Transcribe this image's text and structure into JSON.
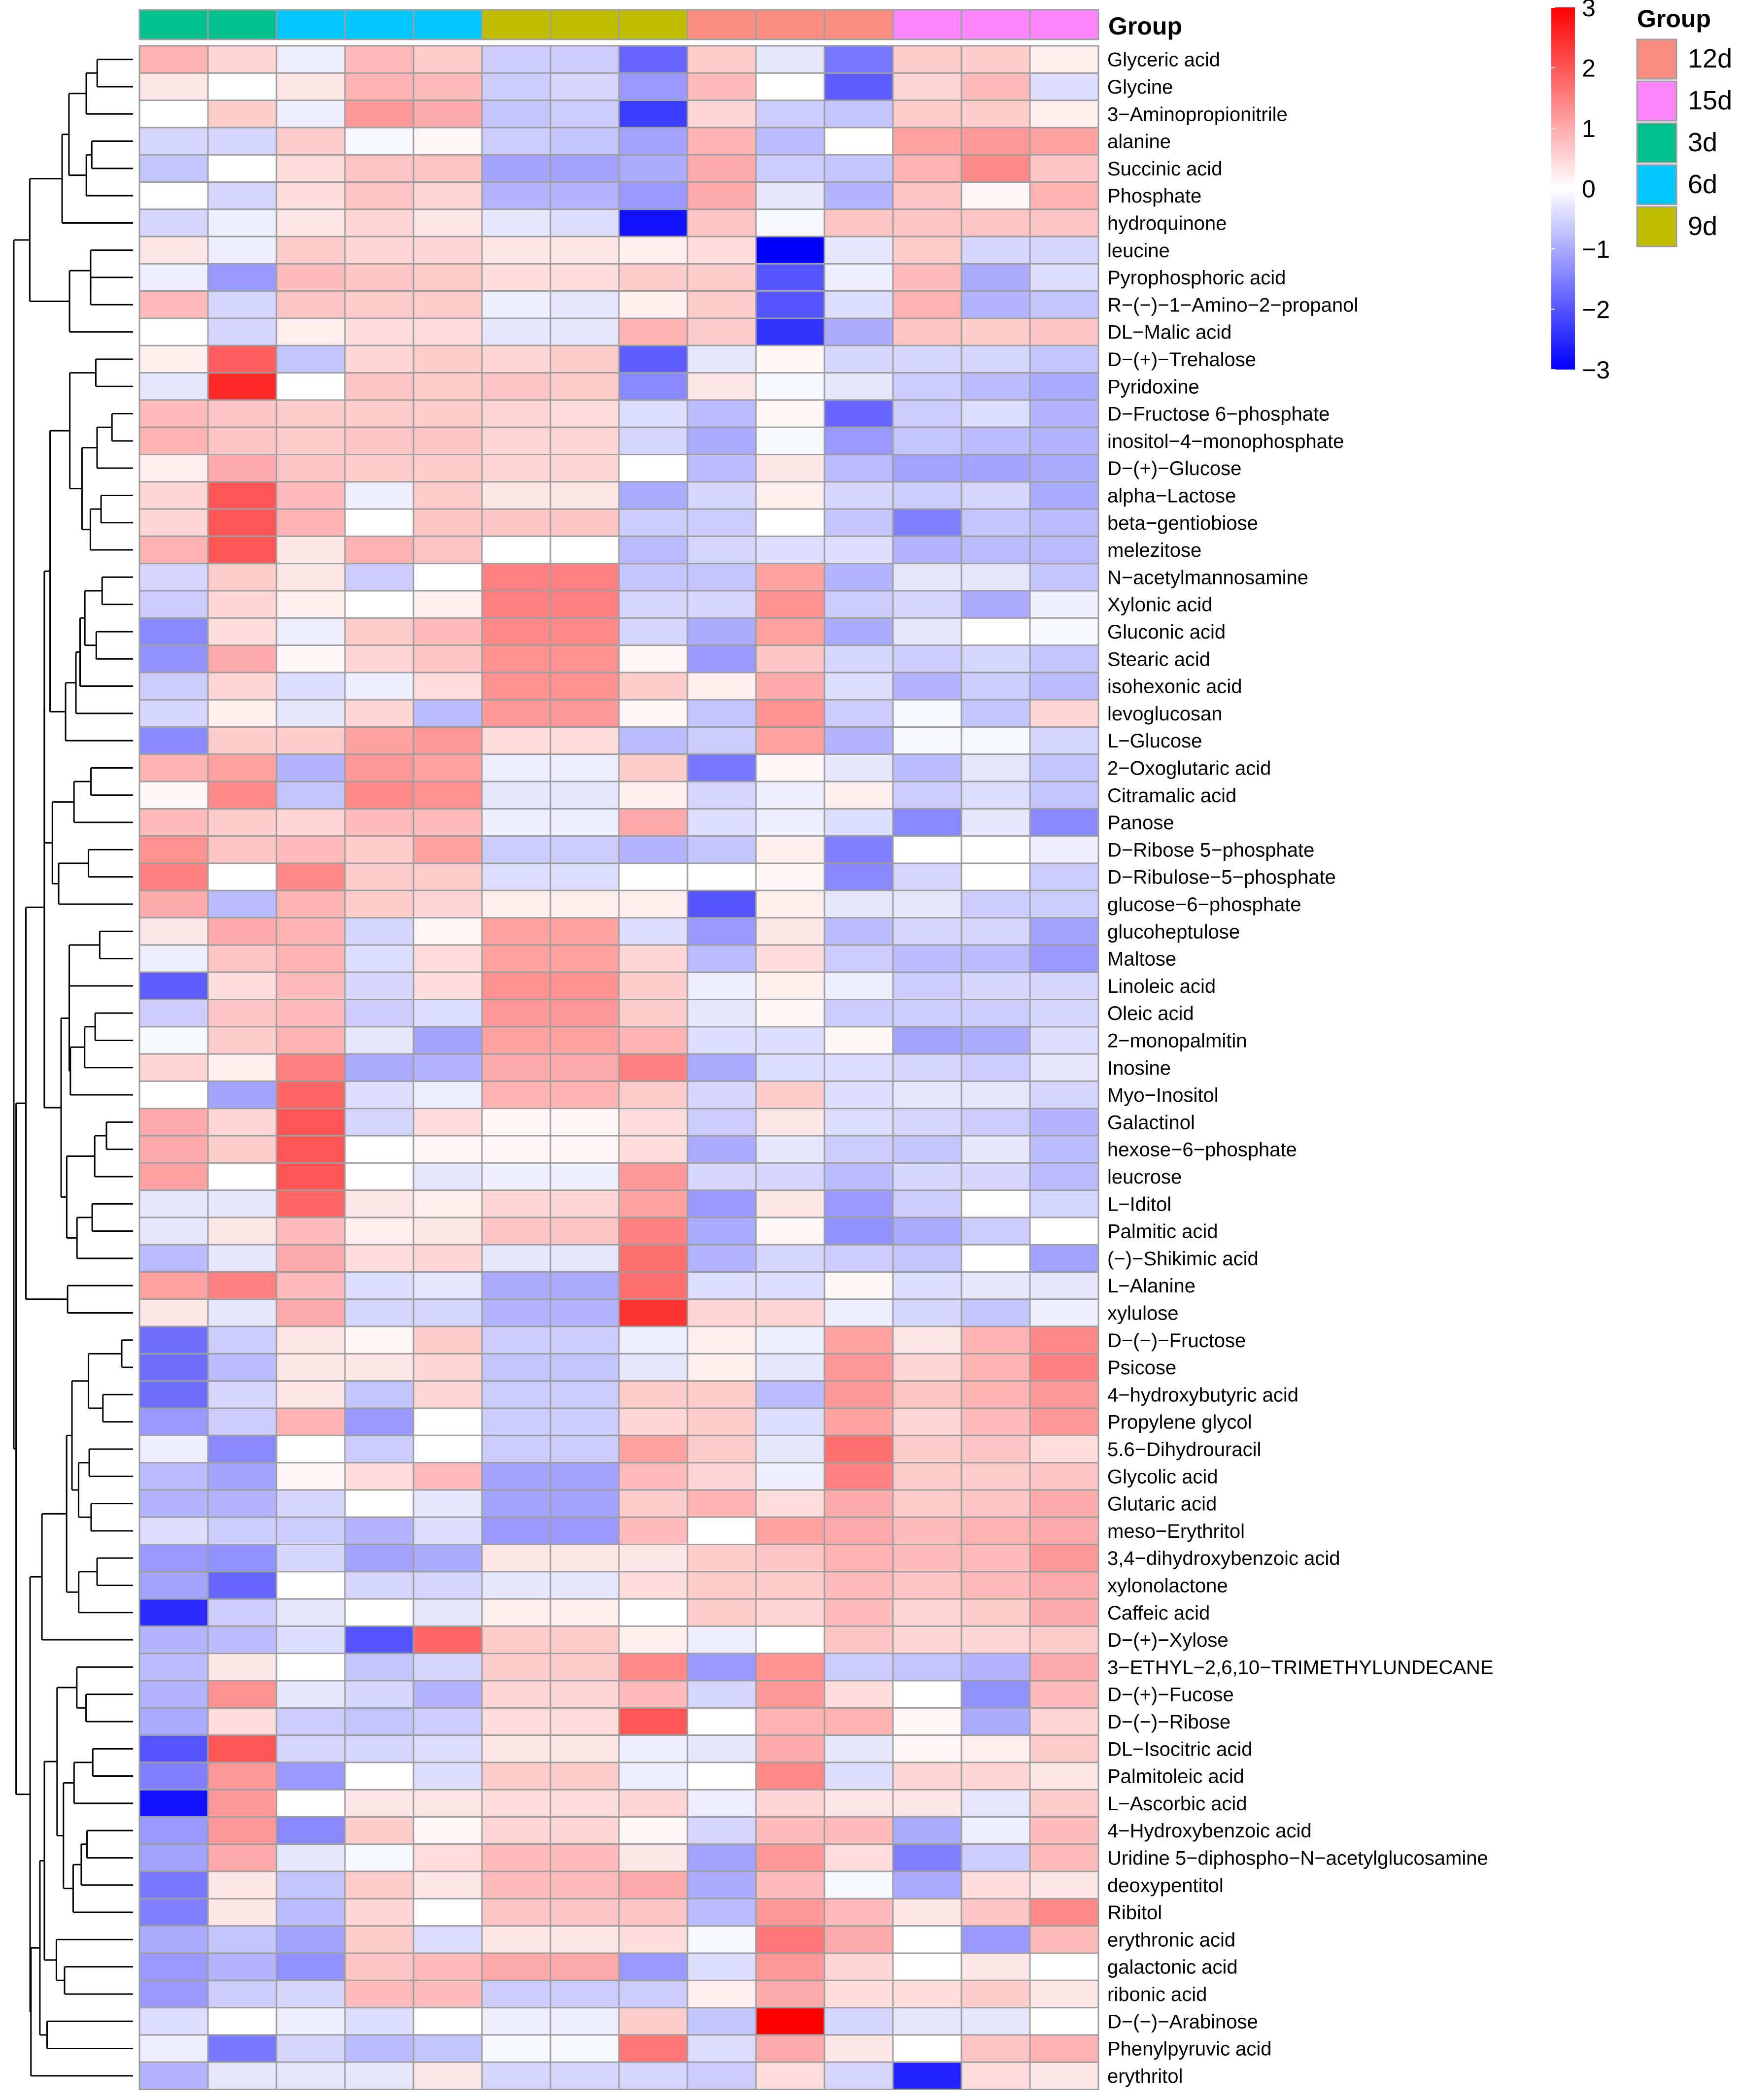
{
  "chart_data": {
    "type": "heatmap",
    "annotation_title": "Group",
    "column_groups": [
      "3d",
      "3d",
      "6d",
      "6d",
      "6d",
      "9d",
      "9d",
      "9d",
      "12d",
      "12d",
      "12d",
      "15d",
      "15d",
      "15d"
    ],
    "group_colors": {
      "3d": "#00C08D",
      "6d": "#00C8FF",
      "9d": "#BFBF00",
      "12d": "#FA8D80",
      "15d": "#FF85FF"
    },
    "legend": {
      "title": "Group",
      "items": [
        "12d",
        "15d",
        "3d",
        "6d",
        "9d"
      ]
    },
    "colorbar": {
      "min": -3,
      "max": 3,
      "ticks": [
        3,
        2,
        1,
        0,
        -1,
        -2,
        -3
      ],
      "tick_labels": [
        "3",
        "2",
        "1",
        "0",
        "−1",
        "−2",
        "−3"
      ],
      "colors": {
        "low": "#0000FF",
        "mid": "#FFFFFF",
        "high": "#FF0000"
      }
    },
    "rows": [
      "Glyceric acid",
      "Glycine",
      "3−Aminopropionitrile",
      "alanine",
      "Succinic acid",
      "Phosphate",
      "hydroquinone",
      "leucine",
      "Pyrophosphoric acid",
      "R−(−)−1−Amino−2−propanol",
      "DL−Malic acid",
      "D−(+)−Trehalose",
      "Pyridoxine",
      "D−Fructose 6−phosphate",
      "inositol−4−monophosphate",
      "D−(+)−Glucose",
      "alpha−Lactose",
      "beta−gentiobiose",
      "melezitose",
      "N−acetylmannosamine",
      "Xylonic acid",
      "Gluconic acid",
      "Stearic acid",
      "isohexonic acid",
      "levoglucosan",
      "L−Glucose",
      "2−Oxoglutaric acid",
      "Citramalic acid",
      "Panose",
      "D−Ribose 5−phosphate",
      "D−Ribulose−5−phosphate",
      "glucose−6−phosphate",
      "glucoheptulose",
      "Maltose",
      "Linoleic acid",
      "Oleic acid",
      "2−monopalmitin",
      "Inosine",
      "Myo−Inositol",
      "Galactinol",
      "hexose−6−phosphate",
      "leucrose",
      "L−Iditol",
      "Palmitic acid",
      "(−)−Shikimic acid",
      "L−Alanine",
      "xylulose",
      "D−(−)−Fructose",
      "Psicose",
      "4−hydroxybutyric acid",
      "Propylene glycol",
      "5.6−Dihydrouracil",
      "Glycolic acid",
      "Glutaric acid",
      "meso−Erythritol",
      "3,4−dihydroxybenzoic acid",
      "xylonolactone",
      "Caffeic acid",
      "D−(+)−Xylose",
      "3−ETHYL−2,6,10−TRIMETHYLUNDECANE",
      "D−(+)−Fucose",
      "D−(−)−Ribose",
      "DL−Isocitric acid",
      "Palmitoleic acid",
      "L−Ascorbic acid",
      "4−Hydroxybenzoic acid",
      "Uridine 5−diphospho−N−acetylglucosamine",
      "deoxypentitol",
      "Ribitol",
      "erythronic acid",
      "galactonic acid",
      "ribonic acid",
      "D−(−)−Arabinose",
      "Phenylpyruvic acid",
      "erythritol"
    ],
    "values": [
      [
        0.9,
        0.5,
        -0.2,
        0.8,
        0.6,
        -0.6,
        -0.6,
        -1.8,
        0.6,
        -0.3,
        -1.6,
        0.6,
        0.6,
        0.2
      ],
      [
        0.3,
        0.0,
        0.3,
        0.9,
        0.8,
        -0.6,
        -0.5,
        -1.2,
        0.8,
        0.0,
        -1.9,
        0.5,
        0.8,
        -0.4
      ],
      [
        0.0,
        0.6,
        -0.2,
        1.2,
        1.0,
        -0.7,
        -0.6,
        -2.3,
        0.5,
        -0.6,
        -0.7,
        0.6,
        0.6,
        0.2
      ],
      [
        -0.5,
        -0.5,
        0.6,
        -0.1,
        0.1,
        -0.6,
        -0.7,
        -1.1,
        0.9,
        -0.8,
        0.0,
        1.1,
        1.2,
        1.1
      ],
      [
        -0.7,
        0.0,
        0.4,
        0.7,
        0.7,
        -1.1,
        -1.1,
        -1.0,
        1.0,
        -0.6,
        -0.7,
        0.9,
        1.4,
        0.7
      ],
      [
        0.0,
        -0.5,
        0.4,
        0.7,
        0.5,
        -0.9,
        -0.9,
        -1.2,
        1.0,
        -0.3,
        -0.9,
        0.7,
        0.1,
        0.9
      ],
      [
        -0.5,
        -0.2,
        0.3,
        0.5,
        0.3,
        -0.3,
        -0.4,
        -2.8,
        0.7,
        -0.1,
        0.7,
        0.7,
        0.7,
        0.7
      ],
      [
        0.3,
        -0.2,
        0.6,
        0.5,
        0.5,
        0.3,
        0.3,
        0.2,
        0.4,
        -3.0,
        -0.3,
        0.6,
        -0.5,
        -0.5
      ],
      [
        -0.2,
        -1.2,
        0.8,
        0.7,
        0.6,
        0.4,
        0.4,
        0.6,
        0.6,
        -2.0,
        -0.2,
        0.8,
        -1.0,
        -0.4
      ],
      [
        0.8,
        -0.5,
        0.7,
        0.6,
        0.6,
        -0.2,
        -0.3,
        0.2,
        0.6,
        -2.0,
        -0.4,
        0.9,
        -0.9,
        -0.7
      ],
      [
        0.0,
        -0.5,
        0.2,
        0.4,
        0.4,
        -0.3,
        -0.3,
        0.9,
        0.6,
        -2.4,
        -1.0,
        0.7,
        0.6,
        0.7
      ],
      [
        0.2,
        1.9,
        -0.7,
        0.5,
        0.6,
        0.5,
        0.6,
        -1.9,
        -0.3,
        0.1,
        -0.5,
        -0.5,
        -0.5,
        -0.7
      ],
      [
        -0.3,
        2.5,
        0.0,
        0.7,
        0.6,
        0.7,
        0.6,
        -1.4,
        0.3,
        -0.1,
        -0.3,
        -0.6,
        -0.8,
        -1.0
      ],
      [
        0.8,
        0.7,
        0.6,
        0.6,
        0.6,
        0.5,
        0.4,
        -0.4,
        -0.8,
        0.1,
        -1.8,
        -0.6,
        -0.4,
        -0.9
      ],
      [
        0.9,
        0.7,
        0.6,
        0.7,
        0.7,
        0.5,
        0.5,
        -0.5,
        -1.0,
        -0.1,
        -1.2,
        -0.7,
        -0.8,
        -0.9
      ],
      [
        0.2,
        1.0,
        0.7,
        0.6,
        0.6,
        0.5,
        0.5,
        0.0,
        -0.8,
        0.3,
        -0.8,
        -1.1,
        -1.1,
        -1.0
      ],
      [
        0.5,
        2.0,
        0.8,
        -0.2,
        0.6,
        0.3,
        0.3,
        -1.0,
        -0.5,
        0.2,
        -0.5,
        -0.6,
        -0.5,
        -1.0
      ],
      [
        0.5,
        2.0,
        0.9,
        0.0,
        0.7,
        0.7,
        0.7,
        -0.6,
        -0.6,
        0.0,
        -0.7,
        -1.5,
        -0.7,
        -0.8
      ],
      [
        0.9,
        2.0,
        0.3,
        0.9,
        0.7,
        0.0,
        0.0,
        -0.8,
        -0.5,
        -0.4,
        -0.4,
        -0.9,
        -0.8,
        -0.8
      ],
      [
        -0.5,
        0.6,
        0.3,
        -0.6,
        0.0,
        1.5,
        1.5,
        -0.7,
        -0.7,
        1.1,
        -0.9,
        -0.3,
        -0.3,
        -0.7
      ],
      [
        -0.6,
        0.5,
        0.2,
        0.0,
        0.2,
        1.5,
        1.5,
        -0.5,
        -0.5,
        1.3,
        -0.6,
        -0.5,
        -1.0,
        -0.2
      ],
      [
        -1.4,
        0.4,
        -0.2,
        0.6,
        0.8,
        1.4,
        1.4,
        -0.5,
        -1.0,
        1.1,
        -1.0,
        -0.3,
        0.0,
        -0.1
      ],
      [
        -1.3,
        1.0,
        0.1,
        0.5,
        0.7,
        1.3,
        1.3,
        0.1,
        -1.2,
        0.7,
        -0.5,
        -0.6,
        -0.5,
        -0.7
      ],
      [
        -0.6,
        0.5,
        -0.4,
        -0.2,
        0.4,
        1.3,
        1.3,
        0.6,
        0.2,
        1.0,
        -0.4,
        -0.9,
        -0.6,
        -0.8
      ],
      [
        -0.5,
        0.2,
        -0.3,
        0.5,
        -0.8,
        1.2,
        1.2,
        0.1,
        -0.7,
        1.3,
        -0.6,
        -0.1,
        -0.7,
        0.5
      ],
      [
        -1.4,
        0.6,
        0.6,
        1.1,
        1.2,
        0.4,
        0.4,
        -0.8,
        -0.6,
        1.1,
        -0.9,
        -0.1,
        -0.1,
        -0.5
      ],
      [
        0.9,
        1.1,
        -0.9,
        1.2,
        1.1,
        -0.2,
        -0.2,
        0.6,
        -1.6,
        0.1,
        -0.3,
        -0.8,
        -0.3,
        -0.7
      ],
      [
        0.1,
        1.4,
        -0.7,
        1.4,
        1.3,
        -0.3,
        -0.3,
        0.2,
        -0.5,
        -0.2,
        0.2,
        -0.6,
        -0.4,
        -0.7
      ],
      [
        0.8,
        0.6,
        0.5,
        0.8,
        0.8,
        -0.2,
        -0.2,
        1.0,
        -0.4,
        -0.2,
        -0.4,
        -1.4,
        -0.3,
        -1.4
      ],
      [
        1.3,
        0.7,
        0.8,
        0.6,
        1.1,
        -0.6,
        -0.6,
        -0.9,
        -0.7,
        0.2,
        -1.5,
        0.0,
        0.0,
        -0.2
      ],
      [
        1.5,
        0.0,
        1.4,
        0.6,
        0.6,
        -0.4,
        -0.4,
        0.0,
        0.0,
        0.1,
        -1.4,
        -0.5,
        0.0,
        -0.6
      ],
      [
        1.0,
        -0.8,
        0.9,
        0.6,
        0.5,
        0.2,
        0.2,
        0.2,
        -2.0,
        0.2,
        -0.3,
        -0.3,
        -0.6,
        -0.6
      ],
      [
        0.3,
        1.0,
        0.9,
        -0.5,
        0.1,
        1.1,
        1.1,
        -0.4,
        -1.2,
        0.3,
        -0.8,
        -0.5,
        -0.5,
        -1.1
      ],
      [
        -0.2,
        0.7,
        0.9,
        -0.4,
        0.4,
        1.1,
        1.1,
        0.5,
        -0.8,
        0.4,
        -0.6,
        -0.8,
        -0.8,
        -1.2
      ],
      [
        -1.9,
        0.4,
        0.8,
        -0.5,
        0.4,
        1.3,
        1.3,
        0.6,
        -0.2,
        0.2,
        -0.2,
        -0.6,
        -0.5,
        -0.5
      ],
      [
        -0.6,
        0.7,
        0.8,
        -0.6,
        -0.4,
        1.2,
        1.2,
        0.6,
        -0.3,
        0.1,
        -0.6,
        -0.6,
        -0.6,
        -0.5
      ],
      [
        -0.1,
        0.6,
        0.9,
        -0.3,
        -1.1,
        1.1,
        1.1,
        0.9,
        -0.4,
        -0.4,
        0.1,
        -1.1,
        -1.0,
        -0.4
      ],
      [
        0.5,
        0.2,
        1.5,
        -1.0,
        -0.9,
        1.0,
        1.0,
        1.5,
        -1.0,
        -0.4,
        -0.4,
        -0.5,
        -0.6,
        -0.3
      ],
      [
        0.0,
        -1.1,
        1.8,
        -0.4,
        -0.2,
        0.9,
        0.9,
        0.6,
        -0.5,
        0.6,
        -0.4,
        -0.3,
        -0.3,
        -0.5
      ],
      [
        1.0,
        0.5,
        2.0,
        -0.5,
        0.4,
        0.1,
        0.1,
        0.4,
        -0.6,
        0.3,
        -0.4,
        -0.5,
        -0.6,
        -0.9
      ],
      [
        1.0,
        0.6,
        2.0,
        0.0,
        0.1,
        0.1,
        0.1,
        0.4,
        -1.0,
        -0.3,
        -0.6,
        -0.7,
        -0.3,
        -0.8
      ],
      [
        1.1,
        0.0,
        2.0,
        0.0,
        -0.3,
        -0.2,
        -0.2,
        1.2,
        -0.5,
        -0.5,
        -0.8,
        -0.5,
        -0.5,
        -0.8
      ],
      [
        -0.3,
        -0.3,
        1.8,
        0.3,
        0.2,
        0.5,
        0.5,
        1.1,
        -1.2,
        0.3,
        -1.2,
        -0.6,
        0.0,
        -0.5
      ],
      [
        -0.3,
        0.3,
        0.8,
        0.2,
        0.3,
        0.7,
        0.7,
        1.5,
        -1.0,
        0.1,
        -1.3,
        -1.0,
        -0.6,
        0.0
      ],
      [
        -0.8,
        -0.3,
        1.0,
        0.4,
        0.5,
        -0.3,
        -0.3,
        1.7,
        -0.9,
        -0.5,
        -0.6,
        -0.7,
        0.0,
        -1.1
      ],
      [
        1.1,
        1.5,
        0.8,
        -0.4,
        -0.3,
        -1.0,
        -1.0,
        1.7,
        -0.4,
        -0.4,
        0.1,
        -0.4,
        -0.3,
        -0.3
      ],
      [
        0.3,
        -0.3,
        1.0,
        -0.5,
        -0.5,
        -0.9,
        -0.9,
        2.4,
        0.5,
        0.5,
        -0.2,
        -0.5,
        -0.7,
        -0.2
      ],
      [
        -1.7,
        -0.6,
        0.3,
        0.1,
        0.6,
        -0.6,
        -0.6,
        -0.2,
        0.2,
        -0.2,
        1.1,
        0.3,
        0.9,
        1.4
      ],
      [
        -1.7,
        -0.8,
        0.3,
        0.3,
        0.5,
        -0.7,
        -0.7,
        -0.3,
        0.2,
        -0.3,
        1.2,
        0.5,
        0.9,
        1.5
      ],
      [
        -1.7,
        -0.5,
        0.3,
        -0.7,
        0.5,
        -0.6,
        -0.6,
        0.6,
        0.6,
        -0.8,
        1.2,
        0.7,
        0.9,
        1.2
      ],
      [
        -1.2,
        -0.6,
        0.9,
        -1.2,
        0.0,
        -0.6,
        -0.6,
        0.5,
        0.6,
        -0.4,
        1.1,
        0.5,
        0.8,
        1.2
      ],
      [
        -0.2,
        -1.4,
        0.0,
        -0.6,
        0.0,
        -0.6,
        -0.6,
        1.1,
        0.6,
        -0.3,
        1.7,
        0.6,
        0.7,
        0.4
      ],
      [
        -0.8,
        -1.1,
        0.1,
        0.4,
        0.8,
        -1.1,
        -1.1,
        0.8,
        0.5,
        -0.2,
        1.5,
        0.6,
        0.6,
        0.7
      ],
      [
        -0.9,
        -0.9,
        -0.5,
        0.0,
        -0.3,
        -1.1,
        -1.1,
        0.6,
        0.9,
        0.4,
        1.0,
        0.6,
        0.7,
        1.0
      ],
      [
        -0.4,
        -0.6,
        -0.6,
        -0.9,
        -0.4,
        -1.2,
        -1.2,
        0.8,
        0.0,
        1.1,
        1.0,
        0.8,
        0.9,
        1.0
      ],
      [
        -1.2,
        -1.3,
        -0.5,
        -1.1,
        -1.0,
        0.3,
        0.3,
        0.3,
        0.6,
        0.7,
        0.9,
        0.8,
        0.8,
        1.2
      ],
      [
        -1.1,
        -1.8,
        0.0,
        -0.5,
        -0.5,
        -0.3,
        -0.3,
        0.4,
        0.6,
        0.6,
        0.8,
        0.7,
        0.8,
        1.0
      ],
      [
        -2.5,
        -0.6,
        -0.3,
        0.0,
        -0.3,
        0.2,
        0.2,
        0.0,
        0.6,
        0.5,
        0.8,
        0.5,
        0.6,
        1.0
      ],
      [
        -0.9,
        -0.8,
        -0.4,
        -2.0,
        1.8,
        0.6,
        0.6,
        0.2,
        -0.2,
        0.0,
        0.7,
        0.5,
        0.5,
        0.6
      ],
      [
        -0.8,
        0.3,
        0.0,
        -0.7,
        -0.5,
        0.6,
        0.6,
        1.4,
        -1.2,
        1.3,
        -0.6,
        -0.7,
        -0.9,
        1.0
      ],
      [
        -0.9,
        1.3,
        -0.3,
        -0.5,
        -0.9,
        0.5,
        0.5,
        0.8,
        -0.5,
        1.2,
        0.4,
        0.0,
        -1.3,
        0.8
      ],
      [
        -1.0,
        0.4,
        -0.6,
        -0.7,
        -0.6,
        0.4,
        0.4,
        2.0,
        0.0,
        0.9,
        0.9,
        0.1,
        -1.0,
        0.5
      ],
      [
        -2.0,
        2.0,
        -0.5,
        -0.5,
        -0.4,
        0.3,
        0.3,
        -0.2,
        -0.3,
        1.0,
        -0.3,
        0.1,
        0.2,
        0.6
      ],
      [
        -1.5,
        1.2,
        -1.2,
        0.0,
        -0.4,
        0.6,
        0.6,
        -0.2,
        0.0,
        1.4,
        -0.4,
        0.5,
        0.5,
        0.3
      ],
      [
        -2.8,
        1.2,
        0.0,
        0.3,
        0.3,
        0.4,
        0.4,
        0.5,
        -0.2,
        0.5,
        0.3,
        0.3,
        -0.3,
        0.6
      ],
      [
        -1.2,
        1.2,
        -1.4,
        0.6,
        0.1,
        0.5,
        0.5,
        0.1,
        -0.5,
        0.8,
        0.8,
        -1.0,
        -0.2,
        0.8
      ],
      [
        -1.1,
        1.0,
        -0.3,
        -0.1,
        0.4,
        0.8,
        0.8,
        0.3,
        -1.1,
        1.2,
        0.4,
        -1.5,
        -0.6,
        0.8
      ],
      [
        -1.6,
        0.3,
        -0.7,
        0.6,
        0.3,
        0.8,
        0.8,
        1.0,
        -1.0,
        0.8,
        -0.1,
        -1.0,
        0.4,
        0.3
      ],
      [
        -1.5,
        0.3,
        -0.8,
        0.5,
        0.0,
        0.7,
        0.7,
        0.7,
        -0.8,
        1.2,
        0.8,
        0.3,
        0.7,
        1.4
      ],
      [
        -1.0,
        -0.7,
        -1.1,
        0.6,
        -0.4,
        0.3,
        0.3,
        0.4,
        -0.1,
        1.6,
        1.0,
        0.0,
        -1.2,
        0.8
      ],
      [
        -1.2,
        -0.9,
        -1.3,
        0.7,
        0.8,
        1.0,
        1.0,
        -1.2,
        -0.4,
        1.2,
        0.5,
        0.0,
        0.3,
        0.0
      ],
      [
        -1.2,
        -0.6,
        -0.5,
        0.8,
        0.8,
        -0.6,
        -0.6,
        -0.6,
        0.2,
        1.0,
        0.4,
        0.4,
        0.6,
        0.3
      ],
      [
        -0.4,
        0.0,
        -0.2,
        -0.4,
        0.0,
        -0.2,
        -0.2,
        0.6,
        -0.7,
        3.0,
        -0.5,
        -0.3,
        -0.3,
        0.0
      ],
      [
        -0.2,
        -1.6,
        -0.5,
        -0.8,
        -0.7,
        -0.1,
        -0.1,
        1.6,
        -0.4,
        1.0,
        0.3,
        0.0,
        0.7,
        0.9
      ],
      [
        -0.9,
        -0.3,
        -0.3,
        -0.3,
        0.3,
        -0.5,
        -0.5,
        -0.5,
        -0.6,
        0.4,
        -0.5,
        -2.6,
        0.4,
        0.3
      ]
    ]
  }
}
